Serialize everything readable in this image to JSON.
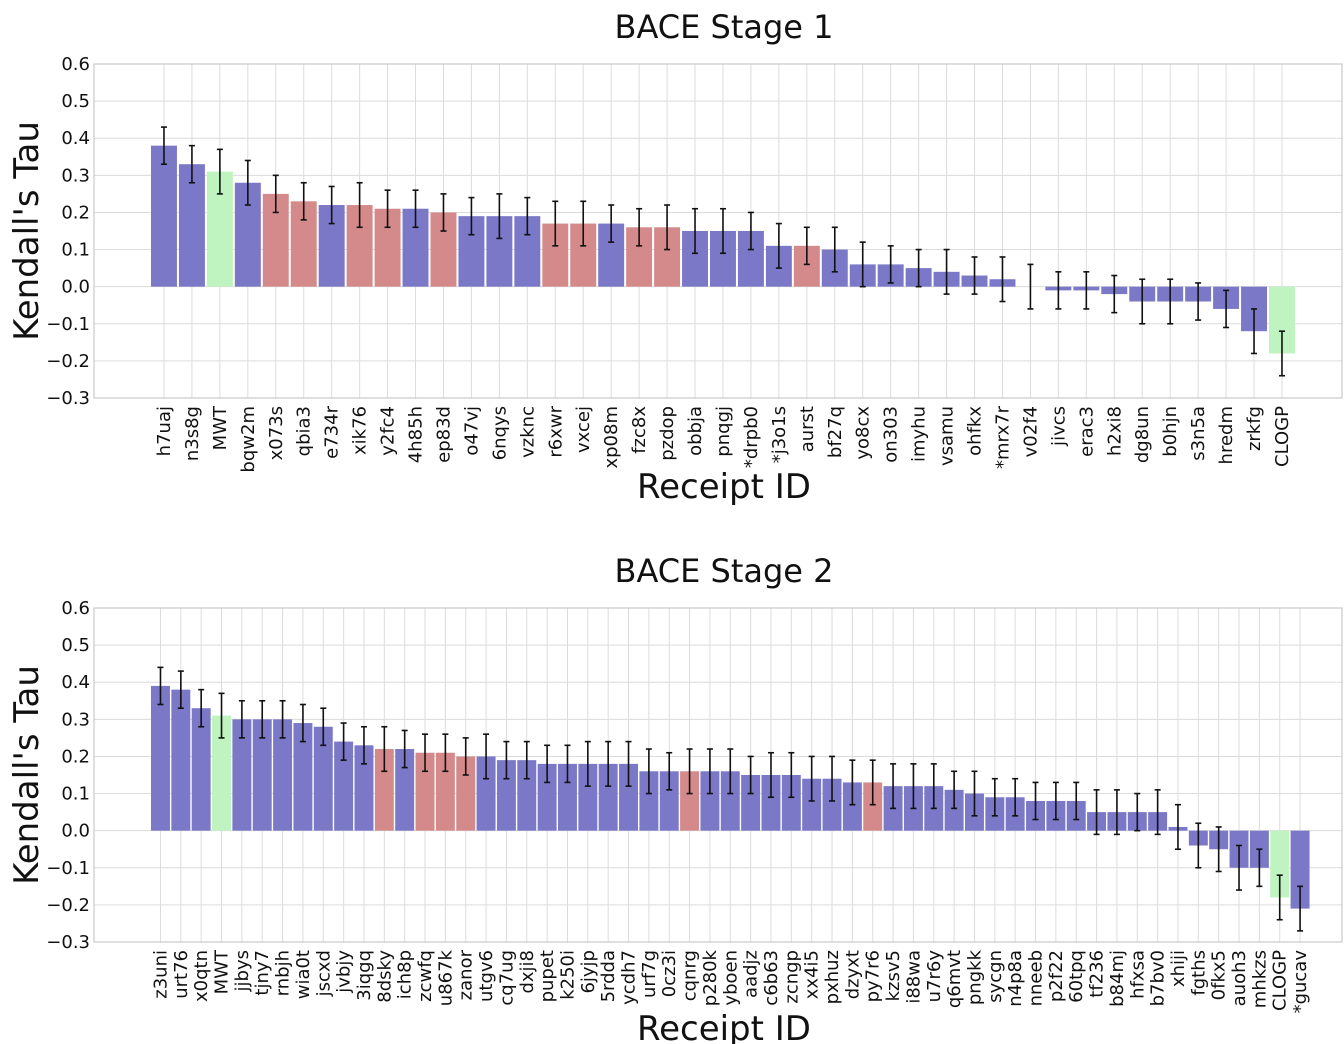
{
  "colors": {
    "blue": "#7b78c8",
    "red": "#d48a8a",
    "green": "#bff3bf"
  },
  "chart_data": [
    {
      "type": "bar",
      "title": "BACE Stage 1",
      "xlabel": "Receipt ID",
      "ylabel": "Kendall's Tau",
      "ylim": [
        -0.3,
        0.6
      ],
      "yticks": [
        -0.3,
        -0.2,
        -0.1,
        0.0,
        0.1,
        0.2,
        0.3,
        0.4,
        0.5,
        0.6
      ],
      "ytick_labels": [
        "−0.3",
        "−0.2",
        "−0.1",
        "0.0",
        "0.1",
        "0.2",
        "0.3",
        "0.4",
        "0.5",
        "0.6"
      ],
      "grid": true,
      "categories": [
        "h7uaj",
        "n3s8g",
        "MWT",
        "bqw2m",
        "x073s",
        "qbia3",
        "e734r",
        "xik76",
        "y2fc4",
        "4h85h",
        "ep83d",
        "o47vj",
        "6nqys",
        "vzknc",
        "r6xwr",
        "vxcej",
        "xp08m",
        "fzc8x",
        "pzdop",
        "obbja",
        "pnqgj",
        "*drpb0",
        "*j3o1s",
        "aurst",
        "bf27q",
        "yo8cx",
        "on303",
        "imyhu",
        "vsamu",
        "ohfkx",
        "*mrx7r",
        "v02f4",
        "jivcs",
        "erac3",
        "h2xi8",
        "dg8un",
        "b0hjn",
        "s3n5a",
        "hredm",
        "zrkfg",
        "CLOGP"
      ],
      "values": [
        0.38,
        0.33,
        0.31,
        0.28,
        0.25,
        0.23,
        0.22,
        0.22,
        0.21,
        0.21,
        0.2,
        0.19,
        0.19,
        0.19,
        0.17,
        0.17,
        0.17,
        0.16,
        0.16,
        0.15,
        0.15,
        0.15,
        0.11,
        0.11,
        0.1,
        0.06,
        0.06,
        0.05,
        0.04,
        0.03,
        0.02,
        0.0,
        -0.01,
        -0.01,
        -0.02,
        -0.04,
        -0.04,
        -0.04,
        -0.06,
        -0.12,
        -0.18
      ],
      "errors": [
        0.05,
        0.05,
        0.06,
        0.06,
        0.05,
        0.05,
        0.05,
        0.06,
        0.05,
        0.05,
        0.05,
        0.05,
        0.06,
        0.05,
        0.06,
        0.06,
        0.05,
        0.05,
        0.06,
        0.06,
        0.06,
        0.05,
        0.06,
        0.05,
        0.06,
        0.06,
        0.05,
        0.05,
        0.06,
        0.05,
        0.06,
        0.06,
        0.05,
        0.05,
        0.05,
        0.06,
        0.06,
        0.05,
        0.05,
        0.06,
        0.06
      ],
      "groups": [
        "blue",
        "blue",
        "green",
        "blue",
        "red",
        "red",
        "blue",
        "red",
        "red",
        "blue",
        "red",
        "blue",
        "blue",
        "blue",
        "red",
        "red",
        "blue",
        "red",
        "red",
        "blue",
        "blue",
        "blue",
        "blue",
        "red",
        "blue",
        "blue",
        "blue",
        "blue",
        "blue",
        "blue",
        "blue",
        "blue",
        "blue",
        "blue",
        "blue",
        "blue",
        "blue",
        "blue",
        "blue",
        "blue",
        "green"
      ]
    },
    {
      "type": "bar",
      "title": "BACE Stage 2",
      "xlabel": "Receipt ID",
      "ylabel": "Kendall's Tau",
      "ylim": [
        -0.3,
        0.6
      ],
      "yticks": [
        -0.3,
        -0.2,
        -0.1,
        0.0,
        0.1,
        0.2,
        0.3,
        0.4,
        0.5,
        0.6
      ],
      "ytick_labels": [
        "−0.3",
        "−0.2",
        "−0.1",
        "0.0",
        "0.1",
        "0.2",
        "0.3",
        "0.4",
        "0.5",
        "0.6"
      ],
      "grid": true,
      "categories": [
        "z3uni",
        "urt76",
        "x0qtn",
        "MWT",
        "jjbys",
        "tjny7",
        "rnbjh",
        "wia0t",
        "jscxd",
        "jvbjy",
        "3iqgq",
        "8dsky",
        "ich8p",
        "zcwfq",
        "u867k",
        "zanor",
        "utgv6",
        "cq7ug",
        "dxji8",
        "pupet",
        "k250i",
        "6jyjp",
        "5rdda",
        "ycdh7",
        "urf7g",
        "0cz3i",
        "cqnrg",
        "p280k",
        "yboen",
        "aadjz",
        "c6b63",
        "zcngp",
        "xx4i5",
        "pxhuz",
        "dzyxt",
        "py7r6",
        "kzsv5",
        "i88wa",
        "u7r6y",
        "q6mvt",
        "pngkk",
        "sycgn",
        "n4p8a",
        "nneeb",
        "p2f22",
        "60tpq",
        "tf236",
        "b84mj",
        "hfxsa",
        "b7bv0",
        "xhiji",
        "fgths",
        "0fkx5",
        "auoh3",
        "mhkzs",
        "CLOGP",
        "*gucav"
      ],
      "values": [
        0.39,
        0.38,
        0.33,
        0.31,
        0.3,
        0.3,
        0.3,
        0.29,
        0.28,
        0.24,
        0.23,
        0.22,
        0.22,
        0.21,
        0.21,
        0.2,
        0.2,
        0.19,
        0.19,
        0.18,
        0.18,
        0.18,
        0.18,
        0.18,
        0.16,
        0.16,
        0.16,
        0.16,
        0.16,
        0.15,
        0.15,
        0.15,
        0.14,
        0.14,
        0.13,
        0.13,
        0.12,
        0.12,
        0.12,
        0.11,
        0.1,
        0.09,
        0.09,
        0.08,
        0.08,
        0.08,
        0.05,
        0.05,
        0.05,
        0.05,
        0.01,
        -0.04,
        -0.05,
        -0.1,
        -0.1,
        -0.18,
        -0.21
      ],
      "errors": [
        0.05,
        0.05,
        0.05,
        0.06,
        0.05,
        0.05,
        0.05,
        0.05,
        0.05,
        0.05,
        0.05,
        0.06,
        0.05,
        0.05,
        0.05,
        0.05,
        0.06,
        0.05,
        0.05,
        0.05,
        0.05,
        0.06,
        0.06,
        0.06,
        0.06,
        0.05,
        0.06,
        0.06,
        0.06,
        0.05,
        0.06,
        0.06,
        0.06,
        0.06,
        0.06,
        0.06,
        0.06,
        0.06,
        0.06,
        0.05,
        0.06,
        0.05,
        0.05,
        0.05,
        0.05,
        0.05,
        0.06,
        0.06,
        0.05,
        0.06,
        0.06,
        0.06,
        0.06,
        0.06,
        0.05,
        0.06,
        0.06
      ],
      "groups": [
        "blue",
        "blue",
        "blue",
        "green",
        "blue",
        "blue",
        "blue",
        "blue",
        "blue",
        "blue",
        "blue",
        "red",
        "blue",
        "red",
        "red",
        "red",
        "blue",
        "blue",
        "blue",
        "blue",
        "blue",
        "blue",
        "blue",
        "blue",
        "blue",
        "blue",
        "red",
        "blue",
        "blue",
        "blue",
        "blue",
        "blue",
        "blue",
        "blue",
        "blue",
        "red",
        "blue",
        "blue",
        "blue",
        "blue",
        "blue",
        "blue",
        "blue",
        "blue",
        "blue",
        "blue",
        "blue",
        "blue",
        "blue",
        "blue",
        "blue",
        "blue",
        "blue",
        "blue",
        "blue",
        "green",
        "blue"
      ]
    }
  ]
}
